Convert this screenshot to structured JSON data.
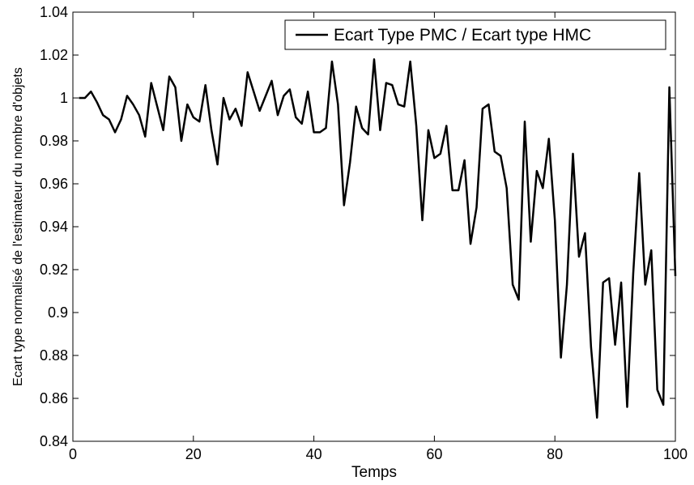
{
  "chart_data": {
    "type": "line",
    "title": "",
    "xlabel": "Temps",
    "ylabel": "Ecart type normalisé de l'estimateur du nombre d'objets",
    "xlim": [
      0,
      100
    ],
    "ylim": [
      0.84,
      1.04
    ],
    "xticks": [
      0,
      20,
      40,
      60,
      80,
      100
    ],
    "xtick_labels": [
      "0",
      "20",
      "40",
      "60",
      "80",
      "100"
    ],
    "yticks": [
      0.84,
      0.86,
      0.88,
      0.9,
      0.92,
      0.94,
      0.96,
      0.98,
      1,
      1.02,
      1.04
    ],
    "ytick_labels": [
      "0.84",
      "0.86",
      "0.88",
      "0.9",
      "0.92",
      "0.94",
      "0.96",
      "0.98",
      "1",
      "1.02",
      "1.04"
    ],
    "grid": false,
    "legend_position": "top-right",
    "series": [
      {
        "name": "Ecart Type PMC / Ecart type HMC",
        "color": "#000000",
        "x": [
          1,
          2,
          3,
          4,
          5,
          6,
          7,
          8,
          9,
          10,
          11,
          12,
          13,
          14,
          15,
          16,
          17,
          18,
          19,
          20,
          21,
          22,
          23,
          24,
          25,
          26,
          27,
          28,
          29,
          30,
          31,
          32,
          33,
          34,
          35,
          36,
          37,
          38,
          39,
          40,
          41,
          42,
          43,
          44,
          45,
          46,
          47,
          48,
          49,
          50,
          51,
          52,
          53,
          54,
          55,
          56,
          57,
          58,
          59,
          60,
          61,
          62,
          63,
          64,
          65,
          66,
          67,
          68,
          69,
          70,
          71,
          72,
          73,
          74,
          75,
          76,
          77,
          78,
          79,
          80,
          81,
          82,
          83,
          84,
          85,
          86,
          87,
          88,
          89,
          90,
          91,
          92,
          93,
          94,
          95,
          96,
          97,
          98,
          99,
          100
        ],
        "values": [
          1.0,
          1.0,
          1.003,
          0.998,
          0.992,
          0.99,
          0.984,
          0.99,
          1.001,
          0.997,
          0.992,
          0.982,
          1.007,
          0.996,
          0.985,
          1.01,
          1.005,
          0.98,
          0.997,
          0.991,
          0.989,
          1.006,
          0.985,
          0.969,
          1.0,
          0.99,
          0.995,
          0.987,
          1.012,
          1.003,
          0.994,
          1.001,
          1.008,
          0.992,
          1.001,
          1.004,
          0.991,
          0.988,
          1.003,
          0.984,
          0.984,
          0.986,
          1.017,
          0.997,
          0.95,
          0.97,
          0.996,
          0.986,
          0.983,
          1.018,
          0.985,
          1.007,
          1.006,
          0.997,
          0.996,
          1.017,
          0.987,
          0.943,
          0.985,
          0.972,
          0.974,
          0.987,
          0.957,
          0.957,
          0.971,
          0.932,
          0.949,
          0.995,
          0.997,
          0.975,
          0.973,
          0.958,
          0.913,
          0.906,
          0.989,
          0.933,
          0.966,
          0.958,
          0.981,
          0.943,
          0.879,
          0.913,
          0.974,
          0.926,
          0.937,
          0.884,
          0.851,
          0.914,
          0.916,
          0.885,
          0.914,
          0.856,
          0.918,
          0.965,
          0.913,
          0.929,
          0.864,
          0.857,
          1.005,
          0.917
        ]
      }
    ]
  }
}
